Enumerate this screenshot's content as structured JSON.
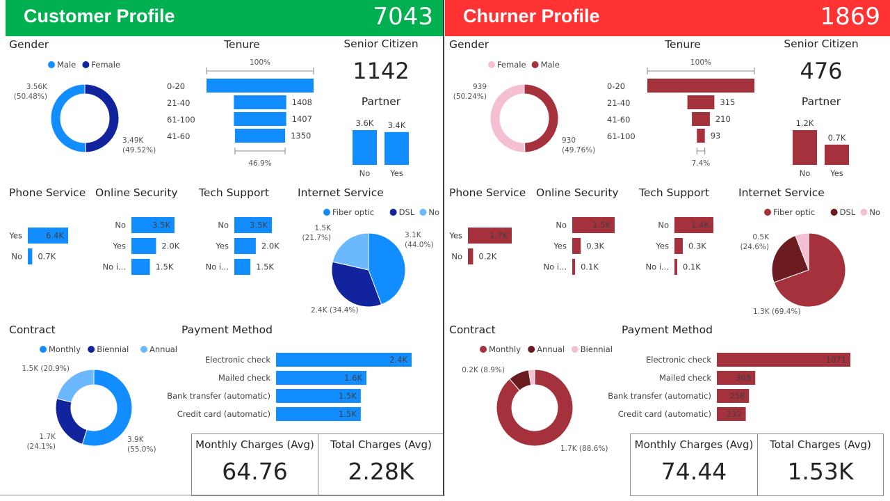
{
  "left": {
    "header": {
      "title": "Customer Profile",
      "count": "7043"
    },
    "colors": {
      "header": "#00b050",
      "primary": "#118dff",
      "dark": "#12239e",
      "light": "#6bb8ff"
    },
    "gender": {
      "title": "Gender",
      "legend": [
        "Male",
        "Female"
      ],
      "label_a": [
        "3.56K",
        "(50.48%)"
      ],
      "label_b": [
        "3.49K",
        "(49.52%)"
      ]
    },
    "tenure": {
      "title": "Tenure",
      "top_label": "100%",
      "bottom_label": "46.9%",
      "categories": [
        "0-20",
        "21-40",
        "61-100",
        "41-60"
      ],
      "value_labels": [
        "",
        "1408",
        "1407",
        "1350"
      ]
    },
    "senior": {
      "title": "Senior Citizen",
      "value": "1142"
    },
    "partner": {
      "title": "Partner",
      "categories": [
        "No",
        "Yes"
      ],
      "value_labels": [
        "3.6K",
        "3.4K"
      ]
    },
    "phone": {
      "title": "Phone Service",
      "categories": [
        "Yes",
        "No"
      ],
      "value_labels": [
        "6.4K",
        "0.7K"
      ]
    },
    "security": {
      "title": "Online Security",
      "categories": [
        "No",
        "Yes",
        "No i..."
      ],
      "value_labels": [
        "3.5K",
        "2.0K",
        "1.5K"
      ]
    },
    "tech": {
      "title": "Tech Support",
      "categories": [
        "No",
        "Yes",
        "No i..."
      ],
      "value_labels": [
        "3.5K",
        "2.0K",
        "1.5K"
      ]
    },
    "internet": {
      "title": "Internet Service",
      "legend": [
        "Fiber optic",
        "DSL",
        "No"
      ],
      "label_1": [
        "3.1K",
        "(44.0%)"
      ],
      "label_2": [
        "2.4K (34.4%)"
      ],
      "label_3": [
        "1.5K",
        "(21.7%)"
      ]
    },
    "contract": {
      "title": "Contract",
      "legend": [
        "Monthly",
        "Biennial",
        "Annual"
      ],
      "label_1": [
        "3.9K",
        "(55.0%)"
      ],
      "label_2": [
        "1.7K",
        "(24.1%)"
      ],
      "label_3": [
        "1.5K (20.9%)"
      ]
    },
    "payment": {
      "title": "Payment Method",
      "categories": [
        "Electronic check",
        "Mailed check",
        "Bank transfer (automatic)",
        "Credit card (automatic)"
      ],
      "value_labels": [
        "2.4K",
        "1.6K",
        "1.5K",
        "1.5K"
      ]
    },
    "kpi": {
      "monthly_label": "Monthly Charges (Avg)",
      "monthly_value": "64.76",
      "total_label": "Total Charges (Avg)",
      "total_value": "2.28K"
    }
  },
  "right": {
    "header": {
      "title": "Churner Profile",
      "count": "1869"
    },
    "colors": {
      "header": "#ff3333",
      "primary": "#a4313b",
      "dark": "#6b1a1f",
      "light": "#f4bfd3"
    },
    "gender": {
      "title": "Gender",
      "legend": [
        "Female",
        "Male"
      ],
      "label_a": [
        "939",
        "(50.24%)"
      ],
      "label_b": [
        "930",
        "(49.76%)"
      ]
    },
    "tenure": {
      "title": "Tenure",
      "top_label": "100%",
      "bottom_label": "7.4%",
      "categories": [
        "0-20",
        "21-40",
        "41-60",
        "61-100"
      ],
      "value_labels": [
        "",
        "315",
        "210",
        "93"
      ]
    },
    "senior": {
      "title": "Senior Citizen",
      "value": "476"
    },
    "partner": {
      "title": "Partner",
      "categories": [
        "No",
        "Yes"
      ],
      "value_labels": [
        "1.2K",
        "0.7K"
      ]
    },
    "phone": {
      "title": "Phone Service",
      "categories": [
        "Yes",
        "No"
      ],
      "value_labels": [
        "1.7K",
        "0.2K"
      ]
    },
    "security": {
      "title": "Online Security",
      "categories": [
        "No",
        "Yes",
        "No i..."
      ],
      "value_labels": [
        "1.5K",
        "0.3K",
        "0.1K"
      ]
    },
    "tech": {
      "title": "Tech Support",
      "categories": [
        "No",
        "Yes",
        "No i..."
      ],
      "value_labels": [
        "1.4K",
        "0.3K",
        "0.1K"
      ]
    },
    "internet": {
      "title": "Internet Service",
      "legend": [
        "Fiber optic",
        "DSL",
        "No"
      ],
      "label_1": [
        "1.3K (69.4%)"
      ],
      "label_2": [
        "0.5K",
        "(24.6%)"
      ],
      "label_3": []
    },
    "contract": {
      "title": "Contract",
      "legend": [
        "Monthly",
        "Annual",
        "Biennial"
      ],
      "label_1": [
        "1.7K (88.6%)"
      ],
      "label_2": [
        "0.2K (8.9%)"
      ],
      "label_3": []
    },
    "payment": {
      "title": "Payment Method",
      "categories": [
        "Electronic check",
        "Mailed check",
        "Bank transfer (automatic)",
        "Credit card (automatic)"
      ],
      "value_labels": [
        "1071",
        "308",
        "258",
        "232"
      ]
    },
    "kpi": {
      "monthly_label": "Monthly Charges (Avg)",
      "monthly_value": "74.44",
      "total_label": "Total Charges (Avg)",
      "total_value": "1.53K"
    }
  },
  "chart_data": [
    {
      "type": "pie",
      "panel": "Customer Profile",
      "title": "Gender",
      "categories": [
        "Male",
        "Female"
      ],
      "values": [
        3555,
        3488
      ]
    },
    {
      "type": "bar",
      "panel": "Customer Profile",
      "title": "Tenure",
      "categories": [
        "0-20",
        "21-40",
        "61-100",
        "41-60"
      ],
      "values": [
        2878,
        1408,
        1407,
        1350
      ]
    },
    {
      "type": "bar",
      "panel": "Customer Profile",
      "title": "Partner",
      "categories": [
        "No",
        "Yes"
      ],
      "values": [
        3600,
        3400
      ]
    },
    {
      "type": "bar",
      "panel": "Customer Profile",
      "title": "Phone Service",
      "categories": [
        "Yes",
        "No"
      ],
      "values": [
        6400,
        700
      ]
    },
    {
      "type": "bar",
      "panel": "Customer Profile",
      "title": "Online Security",
      "categories": [
        "No",
        "Yes",
        "No i..."
      ],
      "values": [
        3500,
        2000,
        1500
      ]
    },
    {
      "type": "bar",
      "panel": "Customer Profile",
      "title": "Tech Support",
      "categories": [
        "No",
        "Yes",
        "No i..."
      ],
      "values": [
        3500,
        2000,
        1500
      ]
    },
    {
      "type": "pie",
      "panel": "Customer Profile",
      "title": "Internet Service",
      "categories": [
        "Fiber optic",
        "DSL",
        "No"
      ],
      "values": [
        3100,
        2400,
        1500
      ]
    },
    {
      "type": "pie",
      "panel": "Customer Profile",
      "title": "Contract",
      "categories": [
        "Monthly",
        "Biennial",
        "Annual"
      ],
      "values": [
        3900,
        1700,
        1500
      ]
    },
    {
      "type": "bar",
      "panel": "Customer Profile",
      "title": "Payment Method",
      "categories": [
        "Electronic check",
        "Mailed check",
        "Bank transfer (automatic)",
        "Credit card (automatic)"
      ],
      "values": [
        2400,
        1600,
        1500,
        1500
      ]
    },
    {
      "type": "pie",
      "panel": "Churner Profile",
      "title": "Gender",
      "categories": [
        "Female",
        "Male"
      ],
      "values": [
        939,
        930
      ]
    },
    {
      "type": "bar",
      "panel": "Churner Profile",
      "title": "Tenure",
      "categories": [
        "0-20",
        "21-40",
        "41-60",
        "61-100"
      ],
      "values": [
        1251,
        315,
        210,
        93
      ]
    },
    {
      "type": "bar",
      "panel": "Churner Profile",
      "title": "Partner",
      "categories": [
        "No",
        "Yes"
      ],
      "values": [
        1200,
        700
      ]
    },
    {
      "type": "bar",
      "panel": "Churner Profile",
      "title": "Phone Service",
      "categories": [
        "Yes",
        "No"
      ],
      "values": [
        1700,
        200
      ]
    },
    {
      "type": "bar",
      "panel": "Churner Profile",
      "title": "Online Security",
      "categories": [
        "No",
        "Yes",
        "No i..."
      ],
      "values": [
        1500,
        300,
        100
      ]
    },
    {
      "type": "bar",
      "panel": "Churner Profile",
      "title": "Tech Support",
      "categories": [
        "No",
        "Yes",
        "No i..."
      ],
      "values": [
        1400,
        300,
        100
      ]
    },
    {
      "type": "pie",
      "panel": "Churner Profile",
      "title": "Internet Service",
      "categories": [
        "Fiber optic",
        "DSL",
        "No"
      ],
      "values": [
        1300,
        460,
        110
      ]
    },
    {
      "type": "pie",
      "panel": "Churner Profile",
      "title": "Contract",
      "categories": [
        "Monthly",
        "Annual",
        "Biennial"
      ],
      "values": [
        1700,
        170,
        49
      ]
    },
    {
      "type": "bar",
      "panel": "Churner Profile",
      "title": "Payment Method",
      "categories": [
        "Electronic check",
        "Mailed check",
        "Bank transfer (automatic)",
        "Credit card (automatic)"
      ],
      "values": [
        1071,
        308,
        258,
        232
      ]
    }
  ]
}
